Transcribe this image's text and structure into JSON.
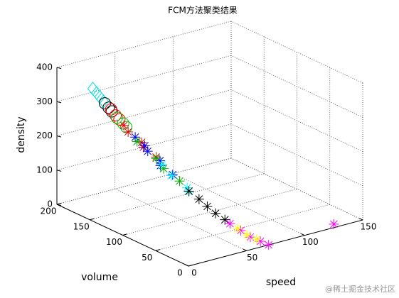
{
  "chart_data": {
    "type": "scatter3d",
    "title": "FCM方法聚类结果",
    "xlabel": "speed",
    "ylabel": "volume",
    "zlabel": "density",
    "xlim": [
      0,
      150
    ],
    "ylim": [
      0,
      200
    ],
    "zlim": [
      0,
      400
    ],
    "xticks": [
      0,
      50,
      100,
      150
    ],
    "yticks": [
      0,
      50,
      100,
      150,
      200
    ],
    "zticks": [
      0,
      100,
      200,
      300,
      400
    ],
    "grid": true,
    "series": [
      {
        "color": "#00e0e0",
        "marker": "diamond",
        "x": [
          23,
          24,
          25,
          26
        ],
        "y": [
          186,
          182,
          179,
          175
        ],
        "z": [
          330,
          320,
          310,
          300
        ]
      },
      {
        "color": "#000000",
        "marker": "circle",
        "x": [
          26,
          27,
          28
        ],
        "y": [
          173,
          169,
          166
        ],
        "z": [
          296,
          286,
          277
        ]
      },
      {
        "color": "#ff0000",
        "marker": "circle",
        "x": [
          28,
          29,
          30
        ],
        "y": [
          167,
          162,
          158
        ],
        "z": [
          282,
          268,
          259
        ]
      },
      {
        "color": "#00c000",
        "marker": "circle",
        "x": [
          29,
          31,
          32
        ],
        "y": [
          160,
          154,
          151
        ],
        "z": [
          263,
          250,
          241
        ]
      },
      {
        "color": "#e00000",
        "marker": "asterisk",
        "x": [
          31,
          33,
          35,
          37,
          39
        ],
        "y": [
          153,
          150,
          133,
          134,
          118
        ],
        "z": [
          245,
          227,
          210,
          193,
          177
        ]
      },
      {
        "color": "#0000ff",
        "marker": "asterisk",
        "x": [
          34,
          36,
          38,
          40,
          41,
          43
        ],
        "y": [
          141,
          130,
          129,
          114,
          115,
          100
        ],
        "z": [
          219,
          202,
          185,
          169,
          153,
          138
        ]
      },
      {
        "color": "#00b000",
        "marker": "asterisk",
        "x": [
          35,
          39,
          42,
          45
        ],
        "y": [
          140,
          118,
          112,
          93
        ],
        "z": [
          206,
          173,
          146,
          124
        ]
      },
      {
        "color": "#00ffff",
        "marker": "asterisk",
        "x": [
          40,
          44,
          47,
          49
        ],
        "y": [
          111,
          104,
          85,
          86
        ],
        "z": [
          161,
          131,
          110,
          96
        ]
      },
      {
        "color": "#000000",
        "marker": "asterisk",
        "x": [
          48,
          51,
          53,
          55,
          58
        ],
        "y": [
          84,
          74,
          65,
          56,
          47
        ],
        "z": [
          100,
          83,
          68,
          54,
          41
        ]
      },
      {
        "color": "#ff00ff",
        "marker": "asterisk",
        "x": [
          59,
          62,
          64,
          67,
          69,
          128
        ],
        "y": [
          41,
          30,
          19,
          9,
          0,
          5
        ],
        "z": [
          34,
          21,
          10,
          4,
          0,
          3
        ]
      },
      {
        "color": "#ffff00",
        "marker": "asterisk",
        "x": [
          61,
          63,
          66
        ],
        "y": [
          33,
          22,
          13
        ],
        "z": [
          25,
          14,
          7
        ]
      }
    ]
  },
  "watermark": "@稀土掘金技术社区"
}
